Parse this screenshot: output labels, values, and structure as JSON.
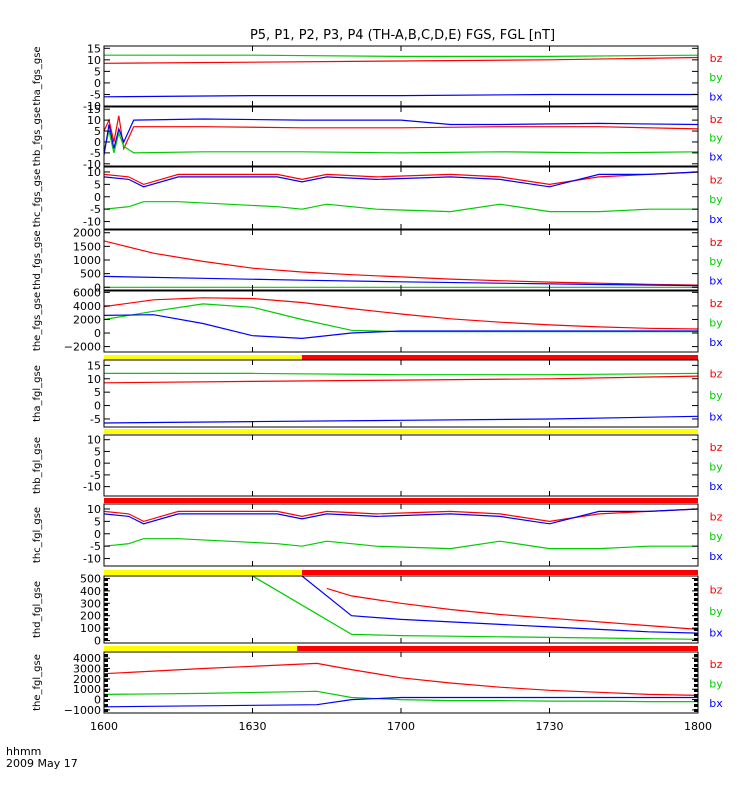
{
  "title": "P5, P1, P2, P3, P4 (TH-A,B,C,D,E) FGS, FGL [nT]",
  "footer": {
    "axis_label": "hhmm",
    "date": "2009 May 17"
  },
  "x_axis": {
    "ticks": [
      0,
      30,
      60,
      90,
      120
    ],
    "tick_labels": [
      "1600",
      "1630",
      "1700",
      "1730",
      "1800"
    ],
    "range": [
      0,
      120
    ]
  },
  "colors": {
    "bx": "#0000ff",
    "by": "#00cc00",
    "bz": "#ff0000",
    "bar_yellow": "#ffff00",
    "bar_red": "#ff0000"
  },
  "chart_data": [
    {
      "type": "line",
      "ylabel": "tha_fgs_gse",
      "ylim": [
        -10,
        16
      ],
      "yticks": [
        15,
        10,
        5,
        0,
        -5,
        -10
      ],
      "ytick_labels": [
        "15",
        "10",
        "5",
        "0",
        "-5",
        "-10"
      ],
      "legend": [
        "bz",
        "by",
        "bx"
      ],
      "series": [
        {
          "name": "bz",
          "x": [
            0,
            30,
            60,
            90,
            120
          ],
          "y": [
            8.5,
            9,
            9.5,
            10,
            11
          ]
        },
        {
          "name": "by",
          "x": [
            0,
            30,
            60,
            90,
            120
          ],
          "y": [
            12,
            12,
            11.5,
            11.5,
            12
          ]
        },
        {
          "name": "bx",
          "x": [
            0,
            30,
            60,
            90,
            120
          ],
          "y": [
            -6,
            -5.5,
            -5.5,
            -5,
            -5
          ]
        }
      ]
    },
    {
      "type": "line",
      "ylabel": "thb_fgs_gse",
      "ylim": [
        -11,
        16
      ],
      "yticks": [
        15,
        10,
        5,
        0,
        -5,
        -10
      ],
      "ytick_labels": [
        "15",
        "10",
        "5",
        "0",
        "-5",
        "-10"
      ],
      "legend": [
        "bz",
        "by",
        "bx"
      ],
      "series": [
        {
          "name": "bz",
          "x": [
            0,
            1,
            2,
            3,
            4,
            6,
            20,
            40,
            60,
            80,
            100,
            120
          ],
          "y": [
            5,
            10,
            0,
            12,
            -3,
            7,
            7,
            6.5,
            6.5,
            7,
            7,
            6
          ]
        },
        {
          "name": "by",
          "x": [
            0,
            1,
            2,
            3,
            4,
            6,
            20,
            40,
            60,
            80,
            100,
            120
          ],
          "y": [
            -4,
            5,
            -5,
            4,
            -2,
            -5,
            -4.5,
            -4.5,
            -5,
            -4.5,
            -5,
            -4.5
          ]
        },
        {
          "name": "bx",
          "x": [
            0,
            1,
            2,
            3,
            4,
            6,
            20,
            40,
            60,
            70,
            80,
            100,
            120
          ],
          "y": [
            -6,
            8,
            -3,
            6,
            0,
            10,
            10.5,
            10,
            10,
            8,
            8,
            8.5,
            8
          ]
        }
      ]
    },
    {
      "type": "line",
      "ylabel": "thc_fgs_gse",
      "ylim": [
        -13,
        12
      ],
      "yticks": [
        10,
        5,
        0,
        -5,
        -10
      ],
      "ytick_labels": [
        "10",
        "5",
        "0",
        "-5",
        "-10"
      ],
      "legend": [
        "bz",
        "by",
        "bx"
      ],
      "series": [
        {
          "name": "bz",
          "x": [
            0,
            5,
            8,
            15,
            25,
            35,
            40,
            45,
            55,
            70,
            80,
            90,
            100,
            110,
            120
          ],
          "y": [
            9,
            8,
            5,
            9,
            9,
            9,
            7,
            9,
            8,
            9,
            8,
            5,
            8,
            9,
            10
          ]
        },
        {
          "name": "by",
          "x": [
            0,
            5,
            8,
            15,
            25,
            35,
            40,
            45,
            55,
            70,
            80,
            90,
            100,
            110,
            120
          ],
          "y": [
            -5,
            -4,
            -2,
            -2,
            -3,
            -4,
            -5,
            -3,
            -5,
            -6,
            -3,
            -6,
            -6,
            -5,
            -5
          ]
        },
        {
          "name": "bx",
          "x": [
            0,
            5,
            8,
            15,
            25,
            35,
            40,
            45,
            55,
            70,
            80,
            90,
            100,
            110,
            120
          ],
          "y": [
            8,
            7,
            4,
            8,
            8,
            8,
            6,
            8,
            7,
            8,
            7,
            4,
            9,
            9,
            10
          ]
        }
      ]
    },
    {
      "type": "line",
      "ylabel": "thd_fgs_gse",
      "ylim": [
        -100,
        2100
      ],
      "yticks": [
        2000,
        1500,
        1000,
        500,
        0
      ],
      "ytick_labels": [
        "2000",
        "1500",
        "1000",
        "500",
        "0"
      ],
      "legend": [
        "bz",
        "by",
        "bx"
      ],
      "series": [
        {
          "name": "bz",
          "x": [
            0,
            10,
            20,
            30,
            40,
            50,
            60,
            70,
            80,
            90,
            100,
            110,
            120
          ],
          "y": [
            1700,
            1250,
            950,
            700,
            560,
            460,
            380,
            300,
            240,
            190,
            150,
            110,
            80
          ]
        },
        {
          "name": "by",
          "x": [
            0,
            120
          ],
          "y": [
            0,
            0
          ]
        },
        {
          "name": "bx",
          "x": [
            0,
            20,
            40,
            60,
            80,
            100,
            120
          ],
          "y": [
            400,
            330,
            260,
            200,
            150,
            100,
            60
          ]
        }
      ]
    },
    {
      "type": "line",
      "ylabel": "the_fgs_gse",
      "ylim": [
        -2800,
        6200
      ],
      "yticks": [
        6000,
        4000,
        2000,
        0,
        -2000
      ],
      "ytick_labels": [
        "6000",
        "4000",
        "2000",
        "0",
        "−2000"
      ],
      "legend": [
        "bz",
        "by",
        "bx"
      ],
      "series": [
        {
          "name": "bz",
          "x": [
            0,
            10,
            20,
            30,
            40,
            50,
            60,
            70,
            80,
            90,
            100,
            110,
            120
          ],
          "y": [
            3900,
            4900,
            5200,
            5100,
            4500,
            3600,
            2800,
            2100,
            1600,
            1200,
            900,
            700,
            600
          ]
        },
        {
          "name": "by",
          "x": [
            0,
            10,
            20,
            30,
            40,
            50,
            60,
            70,
            80,
            90,
            100,
            110,
            120
          ],
          "y": [
            2000,
            3200,
            4300,
            3800,
            2000,
            400,
            200,
            200,
            200,
            200,
            200,
            200,
            200
          ]
        },
        {
          "name": "bx",
          "x": [
            0,
            10,
            20,
            30,
            40,
            50,
            60,
            70,
            80,
            90,
            100,
            110,
            120
          ],
          "y": [
            2600,
            2700,
            1400,
            -400,
            -800,
            0,
            300,
            300,
            300,
            300,
            300,
            300,
            300
          ]
        }
      ],
      "status_bar": [
        {
          "from": 0,
          "to": 40,
          "color": "yellow"
        },
        {
          "from": 40,
          "to": 120,
          "color": "red"
        }
      ]
    },
    {
      "type": "line",
      "ylabel": "tha_fgl_gse",
      "ylim": [
        -8,
        17
      ],
      "yticks": [
        15,
        10,
        5,
        0,
        -5
      ],
      "ytick_labels": [
        "15",
        "10",
        "5",
        "0",
        "-5"
      ],
      "legend": [
        "bz",
        "by",
        "bx"
      ],
      "series": [
        {
          "name": "bz",
          "x": [
            0,
            30,
            60,
            90,
            120
          ],
          "y": [
            8.5,
            9,
            9.5,
            10,
            11
          ]
        },
        {
          "name": "by",
          "x": [
            0,
            30,
            60,
            90,
            120
          ],
          "y": [
            12,
            12,
            11.5,
            11.5,
            12
          ]
        },
        {
          "name": "bx",
          "x": [
            0,
            30,
            60,
            90,
            120
          ],
          "y": [
            -6.5,
            -6,
            -5.5,
            -5,
            -4
          ]
        }
      ],
      "status_bar": [
        {
          "from": 0,
          "to": 120,
          "color": "yellow"
        }
      ]
    },
    {
      "type": "line",
      "ylabel": "thb_fgl_gse",
      "ylim": [
        -14,
        12
      ],
      "yticks": [
        10,
        5,
        0,
        -5,
        -10
      ],
      "ytick_labels": [
        "10",
        "5",
        "0",
        "-5",
        "-10"
      ],
      "legend": [
        "bz",
        "by",
        "bx"
      ],
      "series": [],
      "status_bar": [
        {
          "from": 0,
          "to": 120,
          "color": "red"
        }
      ]
    },
    {
      "type": "line",
      "ylabel": "thc_fgl_gse",
      "ylim": [
        -13,
        12
      ],
      "yticks": [
        10,
        5,
        0,
        -5,
        -10
      ],
      "ytick_labels": [
        "10",
        "5",
        "0",
        "-5",
        "-10"
      ],
      "legend": [
        "bz",
        "by",
        "bx"
      ],
      "series": [
        {
          "name": "bz",
          "x": [
            0,
            5,
            8,
            15,
            25,
            35,
            40,
            45,
            55,
            70,
            80,
            90,
            100,
            110,
            120
          ],
          "y": [
            9,
            8,
            5,
            9,
            9,
            9,
            7,
            9,
            8,
            9,
            8,
            5,
            8,
            9,
            10
          ]
        },
        {
          "name": "by",
          "x": [
            0,
            5,
            8,
            15,
            25,
            35,
            40,
            45,
            55,
            70,
            80,
            90,
            100,
            110,
            120
          ],
          "y": [
            -5,
            -4,
            -2,
            -2,
            -3,
            -4,
            -5,
            -3,
            -5,
            -6,
            -3,
            -6,
            -6,
            -5,
            -5
          ]
        },
        {
          "name": "bx",
          "x": [
            0,
            5,
            8,
            15,
            25,
            35,
            40,
            45,
            55,
            70,
            80,
            90,
            100,
            110,
            120
          ],
          "y": [
            8,
            7,
            4,
            8,
            8,
            8,
            6,
            8,
            7,
            8,
            7,
            4,
            9,
            9,
            10
          ]
        }
      ],
      "status_bar": [
        {
          "from": 0,
          "to": 40,
          "color": "yellow"
        },
        {
          "from": 40,
          "to": 120,
          "color": "red"
        }
      ]
    },
    {
      "type": "line",
      "ylabel": "thd_fgl_gse",
      "ylim": [
        -20,
        520
      ],
      "yticks": [
        500,
        400,
        300,
        200,
        100,
        0
      ],
      "ytick_labels": [
        "500",
        "400",
        "300",
        "200",
        "100",
        "0"
      ],
      "legend": [
        "bz",
        "by",
        "bx"
      ],
      "series": [
        {
          "name": "bz",
          "x": [
            45,
            50,
            60,
            70,
            80,
            90,
            100,
            110,
            120
          ],
          "y": [
            420,
            360,
            300,
            250,
            210,
            180,
            150,
            120,
            90
          ]
        },
        {
          "name": "by",
          "x": [
            30,
            50,
            60,
            70,
            80,
            90,
            100,
            110,
            120
          ],
          "y": [
            520,
            50,
            40,
            35,
            30,
            25,
            20,
            15,
            10
          ]
        },
        {
          "name": "bx",
          "x": [
            40,
            50,
            60,
            70,
            80,
            90,
            100,
            110,
            120
          ],
          "y": [
            520,
            200,
            170,
            150,
            130,
            110,
            90,
            70,
            60
          ]
        }
      ],
      "status_bar": [
        {
          "from": 0,
          "to": 39,
          "color": "yellow"
        },
        {
          "from": 39,
          "to": 120,
          "color": "red"
        }
      ]
    },
    {
      "type": "line",
      "ylabel": "the_fgl_gse",
      "ylim": [
        -1300,
        4600
      ],
      "yticks": [
        4000,
        3000,
        2000,
        1000,
        0,
        -1000
      ],
      "ytick_labels": [
        "4000",
        "3000",
        "2000",
        "1000",
        "0",
        "−1000"
      ],
      "legend": [
        "bz",
        "by",
        "bx"
      ],
      "series": [
        {
          "name": "bz",
          "x": [
            0,
            20,
            43,
            50,
            60,
            70,
            80,
            90,
            100,
            110,
            120
          ],
          "y": [
            2500,
            3000,
            3500,
            2900,
            2100,
            1600,
            1200,
            900,
            700,
            500,
            400
          ]
        },
        {
          "name": "by",
          "x": [
            0,
            20,
            43,
            50,
            60,
            70,
            80,
            90,
            100,
            110,
            120
          ],
          "y": [
            500,
            600,
            800,
            200,
            0,
            -100,
            -100,
            -150,
            -150,
            -200,
            -200
          ]
        },
        {
          "name": "bx",
          "x": [
            0,
            20,
            43,
            50,
            60,
            70,
            80,
            90,
            100,
            110,
            120
          ],
          "y": [
            -700,
            -600,
            -500,
            0,
            200,
            200,
            200,
            200,
            200,
            200,
            200
          ]
        }
      ]
    }
  ]
}
